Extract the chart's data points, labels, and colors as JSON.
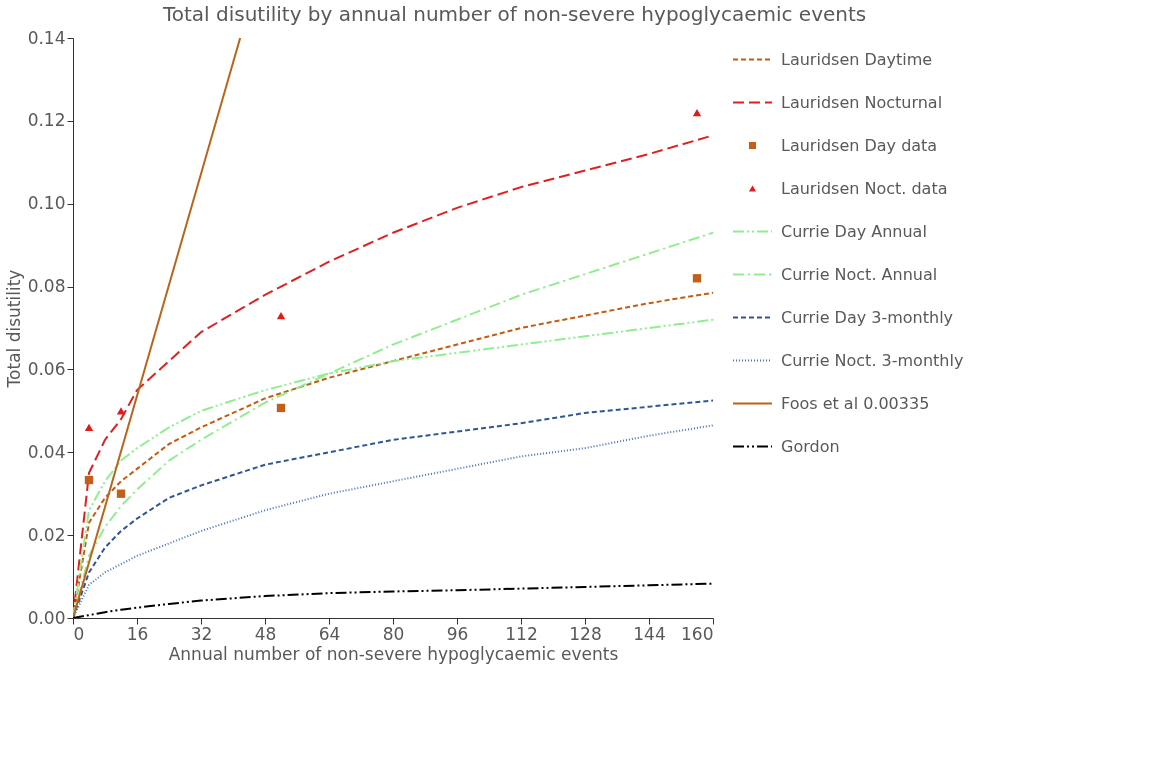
{
  "chart_data": {
    "type": "line",
    "title": "Total disutility by annual number of non-severe hypoglycaemic events",
    "xlabel": "Annual number of non-severe hypoglycaemic events",
    "ylabel": "Total disutility",
    "x": [
      0,
      4,
      8,
      12,
      16,
      24,
      32,
      48,
      64,
      80,
      96,
      112,
      128,
      144,
      160
    ],
    "xlim": [
      0,
      160
    ],
    "xticks": [
      0,
      16,
      32,
      48,
      64,
      80,
      96,
      112,
      128,
      144,
      160
    ],
    "ylim": [
      0,
      0.14
    ],
    "yticks": [
      {
        "value": 0,
        "label": "0.00"
      },
      {
        "value": 0.02,
        "label": "0.02"
      },
      {
        "value": 0.04,
        "label": "0.04"
      },
      {
        "value": 0.06,
        "label": "0.06"
      },
      {
        "value": 0.08,
        "label": "0.08"
      },
      {
        "value": 0.1,
        "label": "0.10"
      },
      {
        "value": 0.12,
        "label": "0.12"
      },
      {
        "value": 0.14,
        "label": "0.14"
      }
    ],
    "grid": false,
    "legend": "right",
    "series": [
      {
        "name": "Lauridsen Daytime",
        "color": "#c55a11",
        "line_style": "dashed",
        "values": [
          0,
          0.023,
          0.029,
          0.033,
          0.036,
          0.042,
          0.046,
          0.053,
          0.058,
          0.062,
          0.066,
          0.07,
          0.073,
          0.076,
          0.0785
        ]
      },
      {
        "name": "Lauridsen Nocturnal",
        "color": "#e02020",
        "line_style": "long_dashed",
        "values": [
          0,
          0.035,
          0.043,
          0.048,
          0.055,
          0.062,
          0.069,
          0.078,
          0.086,
          0.093,
          0.099,
          0.104,
          0.108,
          0.112,
          0.1165
        ]
      },
      {
        "name": "Lauridsen Day data",
        "type": "scatter",
        "marker": "square",
        "color": "#c0601c",
        "x": [
          4,
          12,
          52,
          156
        ],
        "values": [
          0.0333,
          0.03,
          0.0507,
          0.082
        ]
      },
      {
        "name": "Lauridsen Noct. data",
        "type": "scatter",
        "marker": "triangle",
        "color": "#e31a1c",
        "x": [
          4,
          12,
          52,
          156
        ],
        "values": [
          0.046,
          0.05,
          0.073,
          0.122
        ]
      },
      {
        "name": "Currie Day Annual",
        "color": "#90ee90",
        "line_style": "dash_dot_dot",
        "values": [
          0,
          0.026,
          0.033,
          0.038,
          0.041,
          0.046,
          0.05,
          0.055,
          0.059,
          0.062,
          0.064,
          0.066,
          0.068,
          0.07,
          0.072
        ]
      },
      {
        "name": "Currie Noct. Annual",
        "color": "#90ee90",
        "line_style": "dash_dot",
        "values": [
          0,
          0.015,
          0.022,
          0.027,
          0.031,
          0.038,
          0.043,
          0.052,
          0.059,
          0.066,
          0.072,
          0.078,
          0.083,
          0.088,
          0.093
        ]
      },
      {
        "name": "Currie Day 3-monthly",
        "color": "#2f5597",
        "line_style": "dashed",
        "values": [
          0,
          0.011,
          0.017,
          0.021,
          0.024,
          0.029,
          0.032,
          0.037,
          0.04,
          0.043,
          0.045,
          0.047,
          0.0495,
          0.051,
          0.0525
        ]
      },
      {
        "name": "Currie Noct. 3-monthly",
        "color": "#4472c4",
        "line_style": "dotted",
        "values": [
          0,
          0.008,
          0.011,
          0.013,
          0.015,
          0.018,
          0.021,
          0.026,
          0.03,
          0.033,
          0.036,
          0.039,
          0.041,
          0.044,
          0.0465
        ]
      },
      {
        "name": "Foos et al 0.00335",
        "color": "#b8651b",
        "line_style": "solid",
        "x": [
          0,
          41.79
        ],
        "values": [
          0,
          0.14
        ]
      },
      {
        "name": "Gordon",
        "color": "#000000",
        "line_style": "dash_dot_dot",
        "values": [
          0,
          0.0007,
          0.0014,
          0.002,
          0.0025,
          0.0034,
          0.0042,
          0.0053,
          0.006,
          0.0064,
          0.0067,
          0.0071,
          0.0075,
          0.0079,
          0.0083
        ]
      }
    ]
  }
}
